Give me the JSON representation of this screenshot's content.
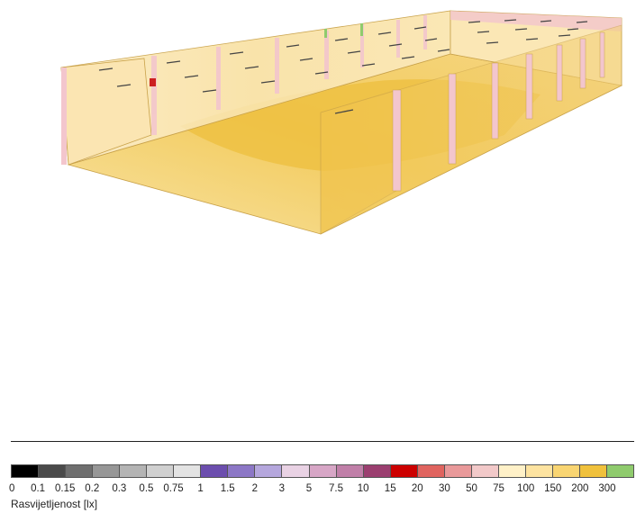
{
  "legend": {
    "ticks": [
      "0",
      "0.1",
      "0.15",
      "0.2",
      "0.3",
      "0.5",
      "0.75",
      "1",
      "1.5",
      "2",
      "3",
      "5",
      "7.5",
      "10",
      "15",
      "20",
      "30",
      "50",
      "75",
      "100",
      "150",
      "200",
      "300"
    ],
    "colors": [
      "#000000",
      "#4a4a4a",
      "#6f6f6f",
      "#979797",
      "#b4b4b4",
      "#d0d0d0",
      "#e3e3e3",
      "#6c4eae",
      "#8c77c6",
      "#b5a7dd",
      "#e9d2e4",
      "#d7a6c6",
      "#c07fa8",
      "#9b3f70",
      "#cc0000",
      "#e0645f",
      "#e9999a",
      "#f2c9c9",
      "#fff1c8",
      "#fde3a0",
      "#f9d572",
      "#f0c13c",
      "#8fcb6d"
    ],
    "label": "Rasvijetljenost [lx]"
  },
  "render": {
    "floor_colors": [
      "#f7dc91",
      "#f3cd63",
      "#eec241"
    ],
    "wall_colors": [
      "#fbe8b8",
      "#f6d785",
      "#f1c95a"
    ],
    "accent_pink": "#f3c6cd"
  }
}
